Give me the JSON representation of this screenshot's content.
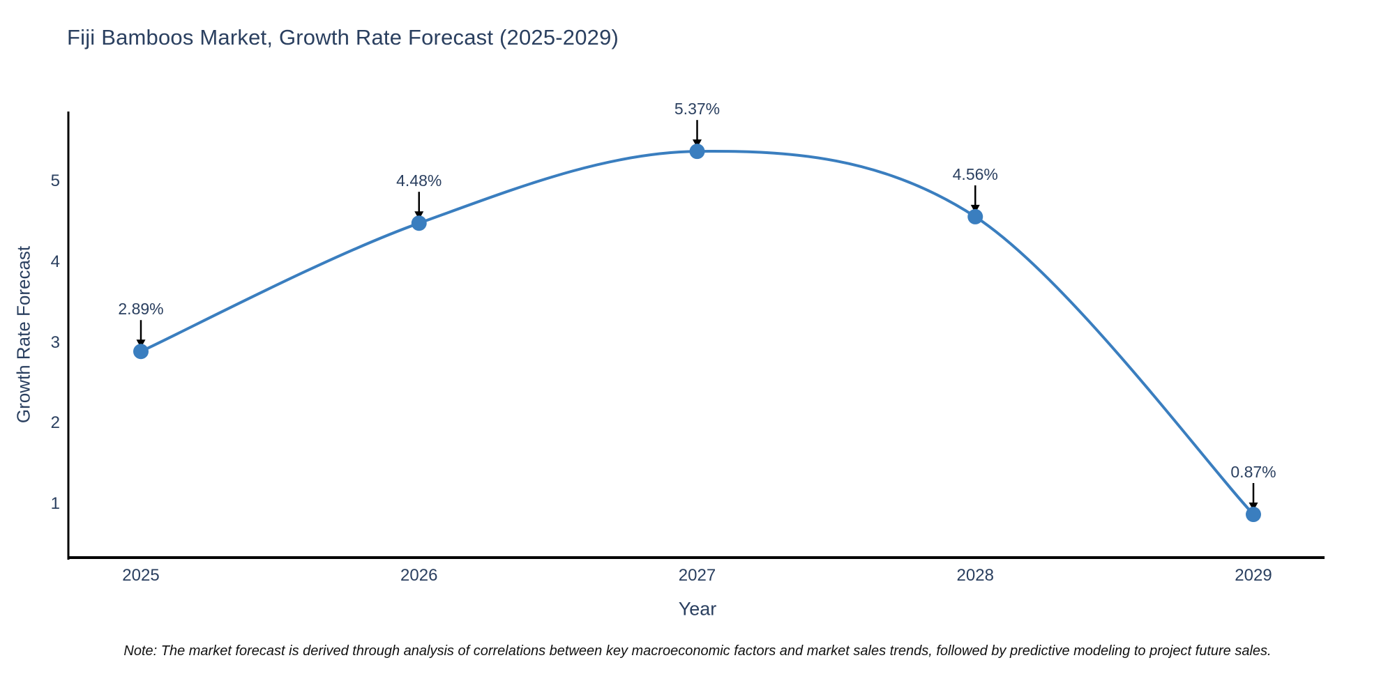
{
  "title": "Fiji Bamboos Market, Growth Rate Forecast (2025-2029)",
  "note": "Note: The market forecast is derived through analysis of correlations between key macroeconomic factors and market sales trends, followed by predictive modeling to project future sales.",
  "chart_data": {
    "type": "line",
    "line_shape": "spline",
    "title": "Fiji Bamboos Market, Growth Rate Forecast (2025-2029)",
    "xlabel": "Year",
    "ylabel": "Growth Rate Forecast",
    "x": [
      2025,
      2026,
      2027,
      2028,
      2029
    ],
    "values": [
      2.89,
      4.48,
      5.37,
      4.56,
      0.87
    ],
    "point_labels": [
      "2.89%",
      "4.48%",
      "5.37%",
      "4.56%",
      "0.87%"
    ],
    "yticks": [
      1,
      2,
      3,
      4,
      5
    ],
    "ylim": [
      0.33,
      5.87
    ],
    "grid": false,
    "legend": "none",
    "annotation_arrows": true,
    "colors": {
      "line": "#3a7ebf",
      "marker": "#3a7ebf",
      "labels": "#2a3f5f",
      "axis_spine": "#000000",
      "arrow": "#000000",
      "note_text": "#111111",
      "background": "#ffffff"
    }
  }
}
